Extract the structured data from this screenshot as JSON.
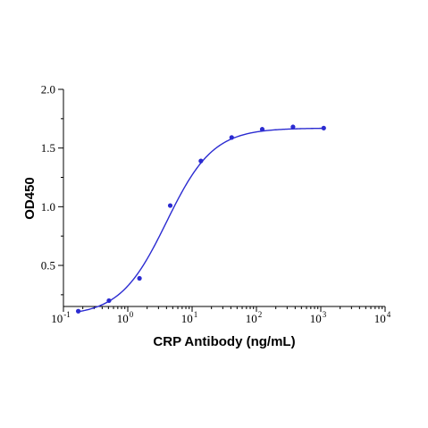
{
  "chart_data": {
    "type": "scatter",
    "title": "",
    "xlabel": "CRP Antibody (ng/mL)",
    "ylabel": "OD450",
    "xscale": "log",
    "xlim": [
      0.1,
      10000
    ],
    "ylim": [
      0.15,
      2.0
    ],
    "x_ticks": [
      {
        "base": "10",
        "exp": "-1",
        "value": 0.1
      },
      {
        "base": "10",
        "exp": "0",
        "value": 1
      },
      {
        "base": "10",
        "exp": "1",
        "value": 10
      },
      {
        "base": "10",
        "exp": "2",
        "value": 100
      },
      {
        "base": "10",
        "exp": "3",
        "value": 1000
      },
      {
        "base": "10",
        "exp": "4",
        "value": 10000
      }
    ],
    "y_ticks": [
      {
        "label": "0.5",
        "value": 0.5
      },
      {
        "label": "1.0",
        "value": 1.0
      },
      {
        "label": "1.5",
        "value": 1.5
      },
      {
        "label": "2.0",
        "value": 2.0
      }
    ],
    "grid": false,
    "legend": "none",
    "color": "#2b2bd1",
    "series": [
      {
        "points": [
          {
            "x": 0.17,
            "y": 0.11
          },
          {
            "x": 0.51,
            "y": 0.2
          },
          {
            "x": 1.52,
            "y": 0.39
          },
          {
            "x": 4.57,
            "y": 1.01
          },
          {
            "x": 13.7,
            "y": 1.39
          },
          {
            "x": 41.2,
            "y": 1.59
          },
          {
            "x": 123,
            "y": 1.66
          },
          {
            "x": 370,
            "y": 1.68
          },
          {
            "x": 1111,
            "y": 1.67
          }
        ],
        "fit": {
          "model": "4PL",
          "bottom": 0.07,
          "top": 1.67,
          "ec50": 4.0,
          "hill": 1.2,
          "x_range": [
            0.17,
            1111
          ]
        }
      }
    ]
  }
}
